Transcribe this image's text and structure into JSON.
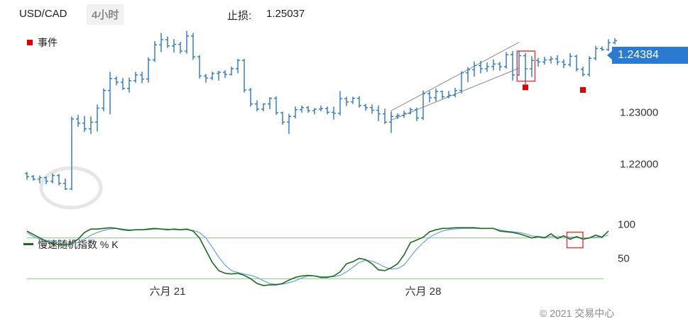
{
  "header": {
    "symbol": "USD/CAD",
    "timeframe": "4小时",
    "stoploss_label": "止损:",
    "stoploss_value": "1.25037"
  },
  "legend": {
    "events_label": "事件",
    "stochastic_label": "慢速随机指数 % K"
  },
  "current_price": "1.24384",
  "copyright": "© 2021 交易中心",
  "colors": {
    "candle": "#2a78c6",
    "event_marker": "#e10000",
    "price_badge": "#2a7ad2",
    "stoch_k": "#1e6b1e",
    "stoch_d": "#6aa3dc",
    "channel": "#9a9a9a",
    "highlight_box": "#e04040",
    "stoch_levels": "#8ac08a"
  },
  "chart_data": [
    {
      "type": "candlestick",
      "title": "USD/CAD 4小时",
      "y_ticks": [
        "1.22000",
        "1.23000",
        "1.24000"
      ],
      "ylim": [
        1.2127,
        1.2455
      ],
      "x_ticks": [
        {
          "label": "六月 21",
          "index": 22
        },
        {
          "label": "六月 28",
          "index": 62
        }
      ],
      "grid": false,
      "ohlc": [
        [
          1.2182,
          1.2185,
          1.217,
          1.2176
        ],
        [
          1.2176,
          1.2179,
          1.2168,
          1.2171
        ],
        [
          1.2171,
          1.2178,
          1.2163,
          1.2174
        ],
        [
          1.2174,
          1.2176,
          1.2161,
          1.2167
        ],
        [
          1.2167,
          1.2182,
          1.2163,
          1.2178
        ],
        [
          1.2178,
          1.2181,
          1.2159,
          1.2163
        ],
        [
          1.2163,
          1.2172,
          1.215,
          1.2152
        ],
        [
          1.2152,
          1.2292,
          1.215,
          1.2287
        ],
        [
          1.2287,
          1.2295,
          1.2272,
          1.2279
        ],
        [
          1.2279,
          1.2293,
          1.2262,
          1.2268
        ],
        [
          1.2268,
          1.2292,
          1.2258,
          1.2281
        ],
        [
          1.2281,
          1.2315,
          1.2263,
          1.2308
        ],
        [
          1.2308,
          1.2346,
          1.2302,
          1.2342
        ],
        [
          1.2342,
          1.2378,
          1.2296,
          1.2365
        ],
        [
          1.2365,
          1.2369,
          1.2352,
          1.2358
        ],
        [
          1.2358,
          1.2366,
          1.2343,
          1.2346
        ],
        [
          1.2346,
          1.2367,
          1.2338,
          1.2361
        ],
        [
          1.2361,
          1.2378,
          1.2357,
          1.2372
        ],
        [
          1.2372,
          1.2378,
          1.2356,
          1.2364
        ],
        [
          1.2364,
          1.2406,
          1.2357,
          1.2401
        ],
        [
          1.2401,
          1.2437,
          1.2397,
          1.243
        ],
        [
          1.243,
          1.2453,
          1.2416,
          1.244
        ],
        [
          1.244,
          1.2446,
          1.2424,
          1.2428
        ],
        [
          1.2428,
          1.2441,
          1.2415,
          1.2431
        ],
        [
          1.2431,
          1.2436,
          1.2413,
          1.2418
        ],
        [
          1.2418,
          1.2457,
          1.2413,
          1.2447
        ],
        [
          1.2447,
          1.2453,
          1.2401,
          1.2407
        ],
        [
          1.2407,
          1.241,
          1.2365,
          1.237
        ],
        [
          1.237,
          1.2374,
          1.2357,
          1.2366
        ],
        [
          1.2366,
          1.2378,
          1.2362,
          1.2375
        ],
        [
          1.2375,
          1.238,
          1.2361,
          1.2377
        ],
        [
          1.2377,
          1.2381,
          1.2366,
          1.2373
        ],
        [
          1.2373,
          1.2388,
          1.2371,
          1.2384
        ],
        [
          1.2384,
          1.2403,
          1.2375,
          1.24
        ],
        [
          1.24,
          1.2403,
          1.2338,
          1.2343
        ],
        [
          1.2343,
          1.2347,
          1.2311,
          1.2316
        ],
        [
          1.2316,
          1.2323,
          1.2302,
          1.2306
        ],
        [
          1.2306,
          1.2317,
          1.2302,
          1.2316
        ],
        [
          1.2316,
          1.2329,
          1.2306,
          1.2327
        ],
        [
          1.2327,
          1.2331,
          1.2295,
          1.2299
        ],
        [
          1.2299,
          1.2301,
          1.2276,
          1.2281
        ],
        [
          1.2281,
          1.2297,
          1.2258,
          1.2292
        ],
        [
          1.2292,
          1.2311,
          1.2288,
          1.2305
        ],
        [
          1.2305,
          1.2313,
          1.2299,
          1.2309
        ],
        [
          1.2309,
          1.2312,
          1.2299,
          1.2303
        ],
        [
          1.2303,
          1.2308,
          1.2296,
          1.2306
        ],
        [
          1.2306,
          1.2313,
          1.2302,
          1.2307
        ],
        [
          1.2307,
          1.2311,
          1.2296,
          1.23
        ],
        [
          1.23,
          1.2311,
          1.2286,
          1.2298
        ],
        [
          1.2298,
          1.2341,
          1.2294,
          1.2326
        ],
        [
          1.2326,
          1.233,
          1.2312,
          1.232
        ],
        [
          1.232,
          1.233,
          1.2316,
          1.2327
        ],
        [
          1.2327,
          1.2331,
          1.2309,
          1.2313
        ],
        [
          1.2313,
          1.2316,
          1.2303,
          1.2309
        ],
        [
          1.2309,
          1.2315,
          1.2297,
          1.2304
        ],
        [
          1.2304,
          1.2313,
          1.2283,
          1.2297
        ],
        [
          1.2297,
          1.2307,
          1.2277,
          1.2281
        ],
        [
          1.2281,
          1.2301,
          1.226,
          1.2292
        ],
        [
          1.2292,
          1.2298,
          1.2287,
          1.2294
        ],
        [
          1.2294,
          1.2303,
          1.2289,
          1.2298
        ],
        [
          1.2298,
          1.2309,
          1.2296,
          1.2305
        ],
        [
          1.2305,
          1.2309,
          1.2283,
          1.2289
        ],
        [
          1.2289,
          1.2342,
          1.2285,
          1.2336
        ],
        [
          1.2336,
          1.2341,
          1.2319,
          1.2328
        ],
        [
          1.2328,
          1.2346,
          1.2321,
          1.234
        ],
        [
          1.234,
          1.2342,
          1.2326,
          1.233
        ],
        [
          1.233,
          1.2341,
          1.2327,
          1.2333
        ],
        [
          1.2333,
          1.2347,
          1.2329,
          1.2342
        ],
        [
          1.2342,
          1.2379,
          1.2336,
          1.2376
        ],
        [
          1.2376,
          1.2387,
          1.2358,
          1.2382
        ],
        [
          1.2382,
          1.2398,
          1.2369,
          1.239
        ],
        [
          1.239,
          1.2399,
          1.2375,
          1.2384
        ],
        [
          1.2384,
          1.2396,
          1.2378,
          1.2388
        ],
        [
          1.2388,
          1.2402,
          1.2381,
          1.2393
        ],
        [
          1.2393,
          1.2397,
          1.238,
          1.2388
        ],
        [
          1.2388,
          1.2416,
          1.2384,
          1.2411
        ],
        [
          1.2411,
          1.2418,
          1.2361,
          1.2372
        ],
        [
          1.2372,
          1.2418,
          1.237,
          1.2409
        ],
        [
          1.2409,
          1.2414,
          1.2354,
          1.2384
        ],
        [
          1.2384,
          1.2408,
          1.2368,
          1.24
        ],
        [
          1.24,
          1.2405,
          1.2388,
          1.2397
        ],
        [
          1.2397,
          1.2407,
          1.2392,
          1.2401
        ],
        [
          1.2401,
          1.2408,
          1.2394,
          1.2403
        ],
        [
          1.2403,
          1.241,
          1.2391,
          1.2397
        ],
        [
          1.2397,
          1.2402,
          1.2385,
          1.2392
        ],
        [
          1.2392,
          1.2414,
          1.2388,
          1.2408
        ],
        [
          1.2408,
          1.2411,
          1.2379,
          1.2383
        ],
        [
          1.2383,
          1.2388,
          1.2369,
          1.2373
        ],
        [
          1.2373,
          1.2408,
          1.2369,
          1.2404
        ],
        [
          1.2404,
          1.2428,
          1.24,
          1.2423
        ],
        [
          1.2423,
          1.2427,
          1.2418,
          1.2421
        ],
        [
          1.2421,
          1.2441,
          1.2418,
          1.2434
        ],
        [
          1.2434,
          1.2443,
          1.2431,
          1.2438
        ]
      ],
      "events": [
        {
          "index": 78,
          "price": 1.2348
        },
        {
          "index": 87,
          "price": 1.2343
        }
      ],
      "channel": {
        "lower": [
          [
            57,
            1.2285
          ],
          [
            77,
            1.2385
          ]
        ],
        "upper": [
          [
            57,
            1.2303
          ],
          [
            77,
            1.2435
          ]
        ]
      },
      "highlight_box": {
        "from_index": 76.7,
        "to_index": 79.5,
        "low": 1.236,
        "high": 1.2418
      }
    },
    {
      "type": "line",
      "name": "慢速随机指数 % K",
      "y_ticks": [
        "50",
        "100"
      ],
      "ylim": [
        13,
        112
      ],
      "levels": [
        80,
        20
      ],
      "series": [
        {
          "name": "%K",
          "values": [
            90,
            85,
            80,
            75,
            72,
            70,
            70,
            72,
            78,
            88,
            93,
            93,
            94,
            95,
            94,
            92,
            91,
            92,
            92,
            93,
            94,
            93,
            92,
            93,
            92,
            93,
            90,
            80,
            62,
            44,
            32,
            28,
            27,
            28,
            25,
            20,
            13,
            10,
            11,
            11,
            13,
            18,
            22,
            24,
            25,
            24,
            22,
            22,
            24,
            30,
            42,
            45,
            50,
            48,
            42,
            33,
            32,
            36,
            42,
            55,
            73,
            77,
            81,
            89,
            92,
            94,
            94,
            95,
            95,
            95,
            95,
            94,
            94,
            94,
            90,
            89,
            88,
            86,
            83,
            80,
            82,
            80,
            86,
            79,
            83,
            78,
            82,
            78,
            80,
            84,
            81,
            90
          ]
        },
        {
          "values": [
            88,
            82,
            78,
            76,
            75,
            73,
            71,
            71,
            73,
            78,
            84,
            88,
            91,
            93,
            94,
            93,
            92,
            92,
            92,
            92,
            93,
            93,
            93,
            92,
            92,
            92,
            91,
            88,
            80,
            66,
            52,
            40,
            32,
            29,
            27,
            25,
            22,
            17,
            13,
            12,
            12,
            14,
            17,
            21,
            24,
            24,
            23,
            23,
            23,
            25,
            30,
            37,
            44,
            47,
            46,
            42,
            37,
            34,
            35,
            40,
            52,
            64,
            73,
            81,
            86,
            90,
            92,
            93,
            94,
            94,
            94,
            94,
            94,
            94,
            92,
            90,
            89,
            88,
            86,
            83,
            82,
            81,
            82,
            82,
            82,
            81,
            81,
            80,
            80,
            81,
            82,
            84
          ]
        }
      ]
    }
  ]
}
